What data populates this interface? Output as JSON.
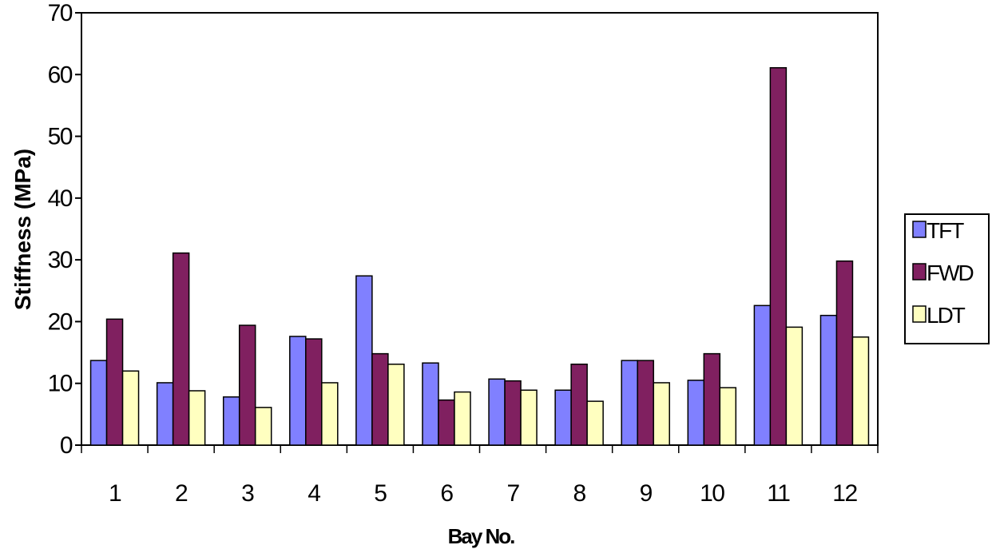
{
  "chart_data": {
    "type": "bar",
    "title": "",
    "xlabel": "Bay No.",
    "ylabel": "Stiffness (MPa)",
    "ylim": [
      0,
      70
    ],
    "yticks": [
      "0",
      "10",
      "20",
      "30",
      "40",
      "50",
      "60",
      "70"
    ],
    "categories": [
      "1",
      "2",
      "3",
      "4",
      "5",
      "6",
      "7",
      "8",
      "9",
      "10",
      "11",
      "12"
    ],
    "series": [
      {
        "name": "TFT",
        "color": "#8080FF",
        "values": [
          13.7,
          10.1,
          7.8,
          17.6,
          27.4,
          13.3,
          10.7,
          8.9,
          13.7,
          10.5,
          22.6,
          21.0
        ]
      },
      {
        "name": "FWD",
        "color": "#802060",
        "values": [
          20.4,
          31.1,
          19.4,
          17.2,
          14.8,
          7.3,
          10.4,
          13.1,
          13.7,
          14.8,
          61.1,
          29.8
        ]
      },
      {
        "name": "LDT",
        "color": "#FFFFC0",
        "values": [
          12.0,
          8.8,
          6.1,
          10.1,
          13.1,
          8.6,
          8.9,
          7.1,
          10.1,
          9.3,
          19.1,
          17.5
        ]
      }
    ],
    "grid": false,
    "legend_position": "right"
  }
}
